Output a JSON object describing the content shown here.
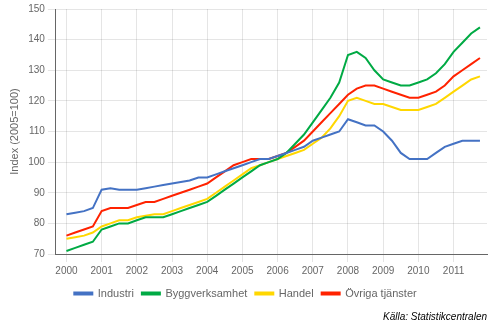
{
  "chart_data": {
    "type": "line",
    "y_label": "Index (2005=100)",
    "source": "Källa: Statistikcentralen",
    "x": [
      2000,
      2000.25,
      2000.5,
      2000.75,
      2001,
      2001.25,
      2001.5,
      2001.75,
      2002,
      2002.25,
      2002.5,
      2002.75,
      2003,
      2003.25,
      2003.5,
      2003.75,
      2004,
      2004.25,
      2004.5,
      2004.75,
      2005,
      2005.25,
      2005.5,
      2005.75,
      2006,
      2006.25,
      2006.5,
      2006.75,
      2007,
      2007.25,
      2007.5,
      2007.75,
      2008,
      2008.25,
      2008.5,
      2008.75,
      2009,
      2009.25,
      2009.5,
      2009.75,
      2010,
      2010.25,
      2010.5,
      2010.75,
      2011,
      2011.25,
      2011.5,
      2011.75
    ],
    "series": [
      {
        "name": "Industri",
        "color": "#4472C4",
        "values": [
          83,
          83.5,
          84,
          85,
          91,
          91.5,
          91,
          91,
          91,
          91.5,
          92,
          92.5,
          93,
          93.5,
          94,
          95,
          95,
          96,
          97,
          98,
          99,
          100,
          101,
          101,
          102,
          103,
          104,
          105,
          107,
          108,
          109,
          110,
          114,
          113,
          112,
          112,
          110,
          107,
          103,
          101,
          101,
          101,
          103,
          105,
          106,
          107,
          107,
          107
        ]
      },
      {
        "name": "Byggverksamhet",
        "color": "#00AA44",
        "values": [
          71,
          72,
          73,
          74,
          78,
          79,
          80,
          80,
          81,
          82,
          82,
          82,
          83,
          84,
          85,
          86,
          87,
          89,
          91,
          93,
          95,
          97,
          99,
          100,
          101,
          103,
          106,
          109,
          113,
          117,
          121,
          126,
          135,
          136,
          134,
          130,
          127,
          126,
          125,
          125,
          126,
          127,
          129,
          132,
          136,
          139,
          142,
          144
        ]
      },
      {
        "name": "Handel",
        "color": "#FFD700",
        "values": [
          75,
          75.5,
          76,
          77,
          79,
          80,
          81,
          81,
          82,
          82.5,
          83,
          83,
          84,
          85,
          86,
          87,
          88,
          90,
          92,
          94,
          96,
          98,
          99,
          100,
          101,
          102,
          103,
          104,
          106,
          108,
          111,
          115,
          120,
          121,
          120,
          119,
          119,
          118,
          117,
          117,
          117,
          118,
          119,
          121,
          123,
          125,
          127,
          128
        ]
      },
      {
        "name": "Övriga tjänster",
        "color": "#FF2200",
        "values": [
          76,
          77,
          78,
          79,
          84,
          85,
          85,
          85,
          86,
          87,
          87,
          88,
          89,
          90,
          91,
          92,
          93,
          95,
          97,
          99,
          100,
          101,
          101,
          101,
          102,
          103,
          105,
          107,
          110,
          113,
          116,
          119,
          122,
          124,
          125,
          125,
          124,
          123,
          122,
          121,
          121,
          122,
          123,
          125,
          128,
          130,
          132,
          134
        ]
      }
    ],
    "xlim": [
      1999.7,
      2011.95
    ],
    "xticks": [
      2000,
      2001,
      2002,
      2003,
      2004,
      2005,
      2006,
      2007,
      2008,
      2009,
      2010,
      2011
    ],
    "ylim": [
      70,
      150
    ],
    "yticks": [
      70,
      80,
      90,
      100,
      110,
      120,
      130,
      140,
      150
    ],
    "grid": true,
    "legend": "bottom"
  }
}
